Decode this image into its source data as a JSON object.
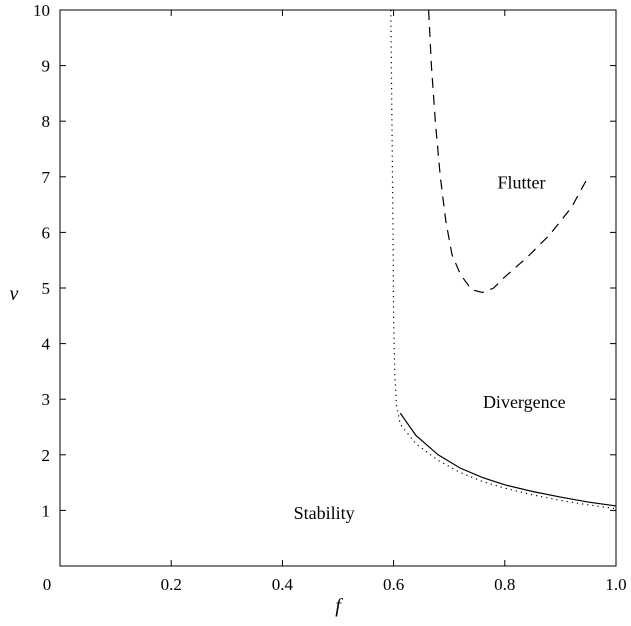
{
  "chart_data": {
    "type": "line",
    "title": "",
    "xlabel": "f",
    "ylabel": "v",
    "xlim": [
      0,
      1
    ],
    "ylim": [
      0,
      10
    ],
    "x_ticks": [
      {
        "value": 0,
        "label": "0"
      },
      {
        "value": 0.2,
        "label": "0.2"
      },
      {
        "value": 0.4,
        "label": "0.4"
      },
      {
        "value": 0.6,
        "label": "0.6"
      },
      {
        "value": 0.8,
        "label": "0.8"
      },
      {
        "value": 1.0,
        "label": "1.0"
      }
    ],
    "y_ticks": [
      {
        "value": 1,
        "label": "1"
      },
      {
        "value": 2,
        "label": "2"
      },
      {
        "value": 3,
        "label": "3"
      },
      {
        "value": 4,
        "label": "4"
      },
      {
        "value": 5,
        "label": "5"
      },
      {
        "value": 6,
        "label": "6"
      },
      {
        "value": 7,
        "label": "7"
      },
      {
        "value": 8,
        "label": "8"
      },
      {
        "value": 9,
        "label": "9"
      },
      {
        "value": 10,
        "label": "10"
      }
    ],
    "grid": false,
    "series": [
      {
        "style": "dotted",
        "color": "#000000",
        "points": [
          [
            0.595,
            10.0
          ],
          [
            0.597,
            8.0
          ],
          [
            0.599,
            6.0
          ],
          [
            0.6,
            4.5
          ],
          [
            0.602,
            3.5
          ],
          [
            0.605,
            2.9
          ],
          [
            0.612,
            2.55
          ],
          [
            0.64,
            2.2
          ],
          [
            0.68,
            1.9
          ],
          [
            0.72,
            1.68
          ],
          [
            0.76,
            1.52
          ],
          [
            0.8,
            1.4
          ],
          [
            0.85,
            1.28
          ],
          [
            0.9,
            1.18
          ],
          [
            0.95,
            1.1
          ],
          [
            1.0,
            1.03
          ]
        ]
      },
      {
        "style": "solid",
        "color": "#000000",
        "points": [
          [
            0.612,
            2.75
          ],
          [
            0.64,
            2.35
          ],
          [
            0.68,
            2.0
          ],
          [
            0.72,
            1.76
          ],
          [
            0.76,
            1.59
          ],
          [
            0.8,
            1.46
          ],
          [
            0.85,
            1.34
          ],
          [
            0.9,
            1.24
          ],
          [
            0.95,
            1.15
          ],
          [
            1.0,
            1.08
          ]
        ]
      },
      {
        "style": "dashed",
        "color": "#000000",
        "points": [
          [
            0.663,
            10.0
          ],
          [
            0.668,
            9.0
          ],
          [
            0.675,
            8.0
          ],
          [
            0.684,
            7.0
          ],
          [
            0.694,
            6.2
          ],
          [
            0.705,
            5.6
          ],
          [
            0.72,
            5.25
          ],
          [
            0.74,
            4.97
          ],
          [
            0.76,
            4.92
          ],
          [
            0.78,
            5.0
          ],
          [
            0.8,
            5.2
          ],
          [
            0.84,
            5.55
          ],
          [
            0.88,
            5.95
          ],
          [
            0.92,
            6.45
          ],
          [
            0.95,
            7.0
          ]
        ]
      }
    ],
    "annotations": [
      {
        "text": "Flutter",
        "x": 0.83,
        "y": 6.9
      },
      {
        "text": "Divergence",
        "x": 0.835,
        "y": 2.95
      },
      {
        "text": "Stability",
        "x": 0.475,
        "y": 0.95
      }
    ]
  }
}
